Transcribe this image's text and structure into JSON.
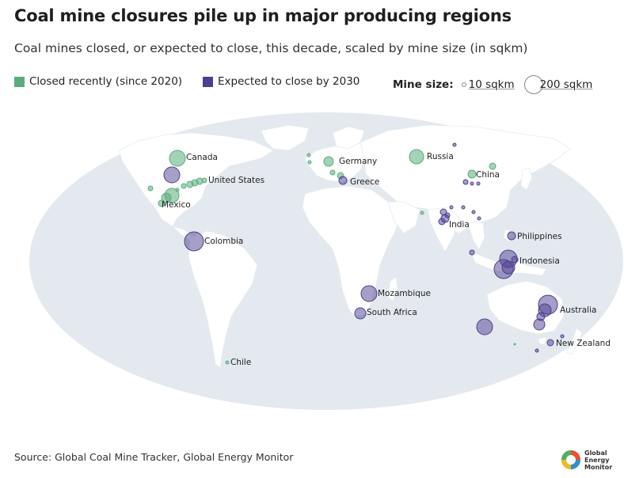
{
  "title": "Coal mine closures pile up in major producing regions",
  "subtitle": "Coal mines closed, or expected to close, this decade, scaled by mine size (in sqkm)",
  "legend": {
    "closed_label": "Closed recently (since 2020)",
    "closed_color": "#5aad7c",
    "expected_label": "Expected to close by 2030",
    "expected_color": "#4e3f8f",
    "size_title": "Mine size:",
    "size_small": "10 sqkm",
    "size_large": "200 sqkm"
  },
  "map": {
    "ocean_color": "#e3e9ee",
    "land_color": "#ffffff",
    "country_labels": {
      "canada": "Canada",
      "united_states": "United States",
      "mexico": "Mexico",
      "colombia": "Colombia",
      "chile": "Chile",
      "germany": "Germany",
      "greece": "Greece",
      "russia": "Russia",
      "china": "China",
      "india": "India",
      "philippines": "Philippines",
      "indonesia": "Indonesia",
      "mozambique": "Mozambique",
      "south_africa": "South Africa",
      "australia": "Australia",
      "new_zealand": "New Zealand"
    }
  },
  "source": "Source: Global Coal Mine Tracker, Global Energy Monitor",
  "logo": {
    "line1": "Global",
    "line2": "Energy",
    "line3": "Monitor"
  }
}
